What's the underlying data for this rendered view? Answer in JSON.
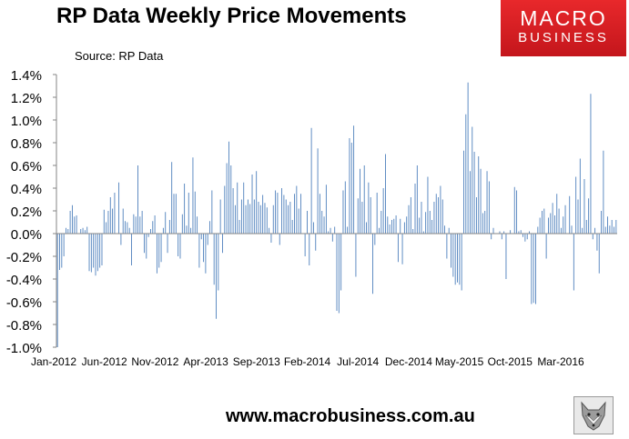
{
  "chart_data": {
    "type": "bar",
    "title": "RP Data Weekly Price Movements",
    "subtitle": "Source: RP Data",
    "ylim": [
      -1.0,
      1.4
    ],
    "y_ticks": [
      "-1.0%",
      "-0.8%",
      "-0.6%",
      "-0.4%",
      "-0.2%",
      "0.0%",
      "0.2%",
      "0.4%",
      "0.6%",
      "0.8%",
      "1.0%",
      "1.2%",
      "1.4%"
    ],
    "x_ticks": [
      "Jan-2012",
      "Jun-2012",
      "Nov-2012",
      "Apr-2013",
      "Sep-2013",
      "Feb-2014",
      "Jul-2014",
      "Dec-2014",
      "May-2015",
      "Oct-2015",
      "Mar-2016"
    ],
    "bar_color": "#4f81bd",
    "grid": false,
    "values": [
      -1.0,
      -0.32,
      -0.3,
      -0.2,
      0.05,
      0.04,
      0.2,
      0.25,
      0.15,
      0.16,
      0.0,
      0.04,
      0.05,
      0.03,
      0.06,
      -0.33,
      -0.34,
      -0.3,
      -0.37,
      -0.33,
      -0.3,
      -0.28,
      0.21,
      0.1,
      0.2,
      0.32,
      0.22,
      0.36,
      0.0,
      0.45,
      -0.1,
      0.22,
      0.11,
      0.1,
      0.05,
      -0.28,
      0.17,
      0.15,
      0.6,
      0.15,
      0.2,
      -0.17,
      -0.22,
      -0.03,
      0.04,
      0.11,
      0.16,
      -0.35,
      -0.3,
      -0.25,
      0.05,
      0.19,
      -0.17,
      0.12,
      0.63,
      0.35,
      0.35,
      -0.2,
      -0.22,
      0.17,
      0.44,
      0.07,
      0.36,
      0.05,
      0.67,
      0.37,
      0.15,
      -0.3,
      -0.05,
      -0.25,
      -0.35,
      -0.1,
      0.11,
      0.38,
      -0.45,
      -0.75,
      -0.5,
      0.3,
      -0.17,
      0.42,
      0.62,
      0.81,
      0.6,
      0.4,
      0.25,
      0.45,
      0.12,
      0.3,
      0.45,
      0.25,
      0.3,
      0.26,
      0.52,
      0.3,
      0.55,
      0.28,
      0.25,
      0.34,
      0.27,
      0.23,
      0.05,
      -0.08,
      0.25,
      0.38,
      0.36,
      -0.1,
      0.4,
      0.34,
      0.3,
      0.25,
      0.28,
      0.12,
      0.35,
      0.42,
      0.22,
      0.35,
      0.0,
      -0.2,
      0.2,
      -0.28,
      0.93,
      0.1,
      -0.15,
      0.75,
      0.35,
      0.2,
      0.15,
      0.43,
      0.02,
      0.05,
      -0.07,
      0.06,
      -0.68,
      -0.7,
      -0.5,
      0.38,
      0.46,
      0.06,
      0.84,
      0.8,
      0.95,
      -0.38,
      0.31,
      0.57,
      0.28,
      0.6,
      0.1,
      0.45,
      0.32,
      -0.53,
      -0.1,
      0.36,
      0.05,
      0.2,
      0.4,
      0.7,
      0.15,
      0.08,
      0.12,
      0.13,
      0.16,
      -0.25,
      0.13,
      -0.27,
      0.1,
      0.15,
      0.25,
      0.32,
      0.04,
      0.44,
      0.6,
      0.14,
      0.28,
      0.02,
      0.19,
      0.5,
      0.2,
      0.12,
      0.28,
      0.35,
      0.32,
      0.42,
      0.3,
      0.07,
      -0.22,
      0.05,
      -0.3,
      -0.38,
      -0.45,
      -0.43,
      -0.45,
      -0.5,
      0.73,
      1.05,
      1.33,
      0.55,
      0.94,
      0.72,
      0.32,
      0.68,
      0.57,
      0.18,
      0.2,
      0.55,
      0.46,
      -0.05,
      0.05,
      0.0,
      0.0,
      0.02,
      -0.05,
      0.02,
      -0.4,
      0.0,
      0.03,
      0.0,
      0.41,
      0.38,
      0.02,
      0.03,
      -0.03,
      -0.07,
      -0.05,
      0.02,
      -0.62,
      -0.61,
      -0.62,
      0.06,
      0.14,
      0.2,
      0.22,
      -0.22,
      0.14,
      0.18,
      0.27,
      0.16,
      0.35,
      0.22,
      0.05,
      0.15,
      0.25,
      0.0,
      0.33,
      0.07,
      -0.5,
      0.5,
      0.3,
      0.66,
      0.05,
      0.48,
      0.12,
      0.31,
      1.23,
      -0.05,
      0.05,
      -0.15,
      -0.35,
      0.2,
      0.73,
      0.06,
      0.15,
      0.07,
      0.12,
      0.06,
      0.12
    ]
  },
  "logo": {
    "line1": "MACRO",
    "line2": "BUSINESS"
  },
  "footer": {
    "url": "www.macrobusiness.com.au"
  }
}
